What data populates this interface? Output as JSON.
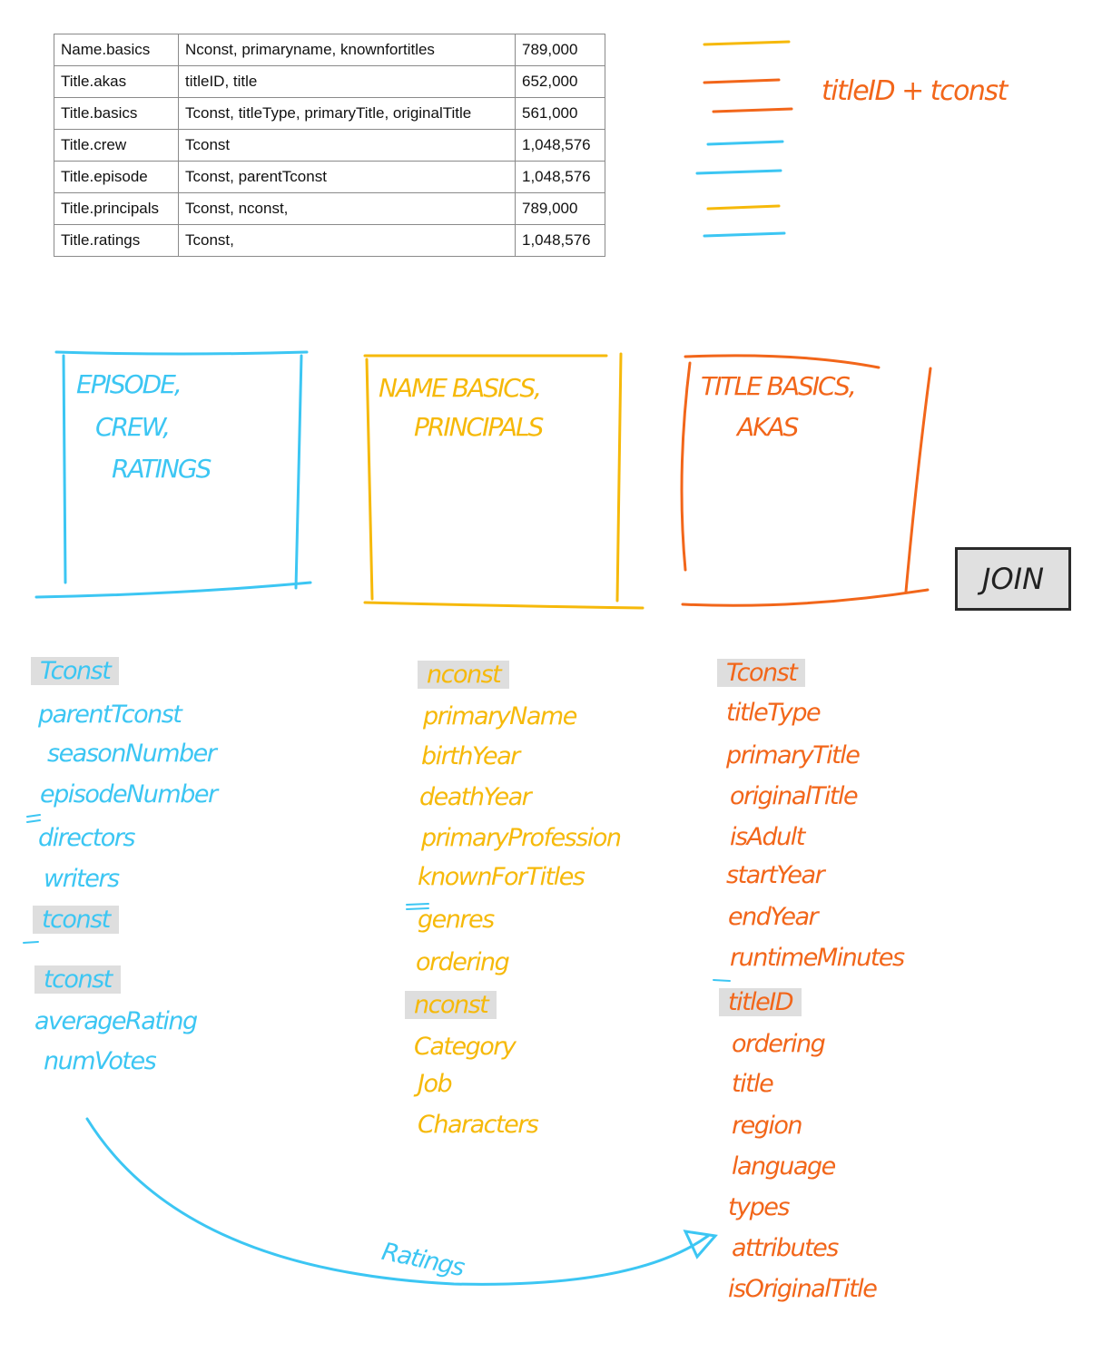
{
  "table": {
    "rows": [
      [
        "Name.basics",
        "Nconst, primaryname, knownfortitles",
        "789,000"
      ],
      [
        "Title.akas",
        "titleID, title",
        "652,000"
      ],
      [
        "Title.basics",
        "Tconst, titleType, primaryTitle, originalTitle",
        "561,000"
      ],
      [
        "Title.crew",
        "Tconst",
        "1,048,576"
      ],
      [
        "Title.episode",
        "Tconst, parentTconst",
        "1,048,576"
      ],
      [
        "Title.principals",
        "Tconst, nconst,",
        "789,000"
      ],
      [
        "Title.ratings",
        "Tconst,",
        "1,048,576"
      ]
    ]
  },
  "legend": {
    "line_colors": [
      "#f6b90a",
      "#f2661a",
      "#f2661a",
      "#3cc6f3",
      "#3cc6f3",
      "#f6b90a",
      "#3cc6f3"
    ],
    "note": "titleID + tconst"
  },
  "boxes": {
    "blue": {
      "lines": [
        "EPISODE,",
        "CREW,",
        "RATINGS"
      ],
      "color": "#3cc6f3"
    },
    "yellow": {
      "lines": [
        "NAME BASICS,",
        "PRINCIPALS"
      ],
      "color": "#f6b90a"
    },
    "orange": {
      "lines": [
        "TITLE BASICS,",
        "AKAS"
      ],
      "color": "#f2661a"
    }
  },
  "join_label": "JOIN",
  "columns": {
    "blue": [
      "Tconst",
      "parentTconst",
      "seasonNumber",
      "episodeNumber",
      "directors",
      "writers",
      "tconst",
      "tconst",
      "averageRating",
      "numVotes"
    ],
    "yellow": [
      "nconst",
      "primaryName",
      "birthYear",
      "deathYear",
      "primaryProfession",
      "knownForTitles",
      "genres",
      "ordering",
      "nconst",
      "Category",
      "Job",
      "Characters"
    ],
    "orange": [
      "Tconst",
      "titleType",
      "primaryTitle",
      "originalTitle",
      "isAdult",
      "startYear",
      "endYear",
      "runtimeMinutes",
      "titleID",
      "ordering",
      "title",
      "region",
      "language",
      "types",
      "attributes",
      "isOriginalTitle"
    ]
  },
  "arrow_label": "Ratings"
}
